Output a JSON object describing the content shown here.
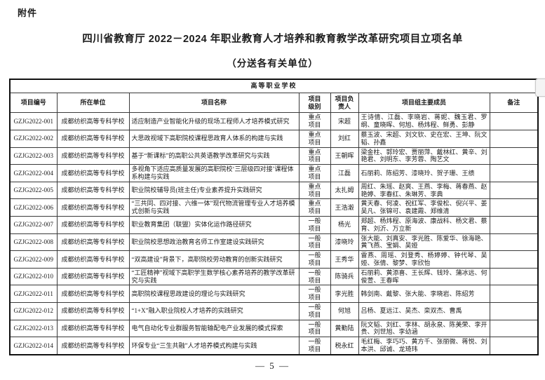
{
  "page": {
    "attachment_label": "附件",
    "title": "四川省教育厅 2022－2024 年职业教育人才培养和教育教学改革研究项目立项名单",
    "subtitle": "（分送各有关单位）",
    "page_number": "— 5 —"
  },
  "table": {
    "banner": "高等职业学校",
    "columns": [
      "项目编号",
      "所在单位",
      "项目名称",
      "项目\n级别",
      "项目负\n责人",
      "项目组主要成员",
      "备注"
    ],
    "rows": [
      {
        "id": "GZJG2022-001",
        "unit": "成都纺织高等专科学校",
        "name": "适应制造产业智能化升级的现场工程师人才培养模式研究",
        "level": "重点\n项目",
        "leader": "宋超",
        "members": "王诗倩、江磊、李晓岩、蒋妮、魏玉君、罗纲、童晓晖、何旭、杨炜程、鲜勇、彭静",
        "remark": ""
      },
      {
        "id": "GZJG2022-002",
        "unit": "成都纺织高等专科学校",
        "name": "大思政视域下高职院校课程思政育人体系的构建与实践",
        "level": "重点\n项目",
        "leader": "刘红",
        "members": "蔡玉波、宋超、刘文钦、史在宏、王坤、阮文韬、孙鑫",
        "remark": ""
      },
      {
        "id": "GZJG2022-003",
        "unit": "成都纺织高等专科学校",
        "name": "基于“新课标”的高职公共英语教学改革研究与实践",
        "level": "重点\n项目",
        "leader": "王朝晖",
        "members": "梁金柱、郭玲宏、贾丽萍、戴林红、黄辛、刘艳君、刘明东、李芳蓉、陶艺文",
        "remark": ""
      },
      {
        "id": "GZJG2022-004",
        "unit": "成都纺织高等专科学校",
        "name": "多视角下适应高质量发展的高职院校‘三层级四对接’课程体系构建与实践",
        "level": "重点\n项目",
        "leader": "江磊",
        "members": "石丽莉、陈绍芳、漆晓玲、贺子珊、王缋",
        "remark": ""
      },
      {
        "id": "GZJG2022-005",
        "unit": "成都纺织高等专科学校",
        "name": "职业院校辅导员(班主任)专业素养提升实践研究",
        "level": "重点\n项目",
        "leader": "太扎姆",
        "members": "周红、朱瑶、赵爽、王燕、李梅、蒋春燕、赵艳婷、李春红、朱琳芳、李典",
        "remark": ""
      },
      {
        "id": "GZJG2022-006",
        "unit": "成都纺织高等专科学校",
        "name": "“三共同、四对接、六维一体”现代物流管理专业人才培养模式创新与实践",
        "level": "重点\n项目",
        "leader": "王浩瀔",
        "members": "黄天春、何凌、祝红军、李俊松、倪兴平、姜吴凡、张锦可、袁建霞、郑维清",
        "remark": ""
      },
      {
        "id": "GZJG2022-007",
        "unit": "成都纺织高等专科学校",
        "name": "职业教育集团（联盟）实体化运作路径研究",
        "level": "一般\n项目",
        "leader": "杨光",
        "members": "郑超、杨炜程、原海波、康战科、杨文君、蔡育、刘沂、万立新",
        "remark": ""
      },
      {
        "id": "GZJG2022-008",
        "unit": "成都纺织高等专科学校",
        "name": "职业院校思想政治教育名师工作室建设实践研究",
        "level": "一般\n项目",
        "leader": "漆晓玲",
        "members": "张大能、刘真安、李光胜、陈爱华、徐海艳、黄飞燕、宝娟、吴娅",
        "remark": ""
      },
      {
        "id": "GZJG2022-009",
        "unit": "成都纺织高等专科学校",
        "name": "“双高建设”背景下，高职院校劳动教育的创新实践研究",
        "level": "一般\n项目",
        "leader": "王秀华",
        "members": "雷燕、周瑶、刘登秀、杨婷婷、钟代琴、吴娅、张倩、黎梦、李欣怡",
        "remark": ""
      },
      {
        "id": "GZJG2022-010",
        "unit": "成都纺织高等专科学校",
        "name": "“工匠精神”视域下高职学生数学核心素养培养的教学改革研究与实践",
        "level": "一般\n项目",
        "leader": "陈骑兵",
        "members": "石丽莉、黄添喜、王长辉、钱玲、蒲冰远、何俊萱、王春晖",
        "remark": ""
      },
      {
        "id": "GZJG2022-011",
        "unit": "成都纺织高等专科学校",
        "name": "高职院校课程思政建设的理论与实践研究",
        "level": "一般\n项目",
        "leader": "李光胜",
        "members": "韩剑南、戴黎、张大能、李晓岩、陈绍芳",
        "remark": ""
      },
      {
        "id": "GZJG2022-012",
        "unit": "成都纺织高等专科学校",
        "name": "“1+X”融入职业院校人才培养的实践研究",
        "level": "一般\n项目",
        "leader": "何旭",
        "members": "吕杨、夏远江、吴杰、栾双杰、曹禹",
        "remark": ""
      },
      {
        "id": "GZJG2022-013",
        "unit": "成都纺织高等专科学校",
        "name": "电气自动化专业群服务智能输配电产业发展的模式探索",
        "level": "一般\n项目",
        "leader": "黄勤陆",
        "members": "阮文韬、刘红、李林、胡永泉、陈美荣、李开贵、刘世旭、李幼涵",
        "remark": ""
      },
      {
        "id": "GZJG2022-014",
        "unit": "成都纺织高等专科学校",
        "name": "环保专业“三生共融”人才培养模式构建与实践",
        "level": "一般\n项目",
        "leader": "税永红",
        "members": "毛红梅、李巧巧、黄方千、张丽微、蒋悦、刘本洪、邱诚、龙琦玮",
        "remark": ""
      }
    ]
  }
}
